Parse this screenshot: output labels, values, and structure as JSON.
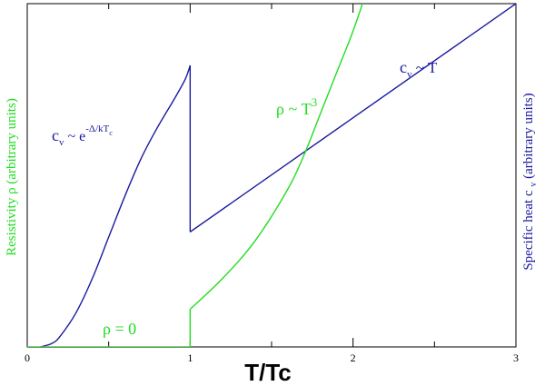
{
  "chart_data": {
    "type": "line",
    "xlabel": "T/Tc",
    "ylabel_left": "Resistivity ρ (arbitrary units)",
    "ylabel_right": "Specific heat c_v (arbitrary units)",
    "xlim": [
      0,
      3
    ],
    "ylim": [
      0,
      1
    ],
    "x_ticks": [
      0,
      1,
      2,
      3
    ],
    "x_tick_labels": [
      "0",
      "1",
      "2",
      "3"
    ],
    "grid": false,
    "colors": {
      "resistivity": "#22dd22",
      "specific_heat": "#1a1aa0"
    },
    "series": [
      {
        "key": "specific_heat",
        "points": [
          [
            0.08,
            0
          ],
          [
            0.15,
            0.01
          ],
          [
            0.2,
            0.03
          ],
          [
            0.3,
            0.1
          ],
          [
            0.4,
            0.2
          ],
          [
            0.5,
            0.32
          ],
          [
            0.6,
            0.44
          ],
          [
            0.7,
            0.55
          ],
          [
            0.8,
            0.64
          ],
          [
            0.9,
            0.72
          ],
          [
            0.97,
            0.78
          ],
          [
            1.0,
            0.82
          ],
          [
            1.0,
            0.335
          ],
          [
            3.0,
            1.0
          ]
        ]
      },
      {
        "key": "resistivity",
        "points": [
          [
            0.0,
            0
          ],
          [
            1.0,
            0
          ],
          [
            1.0,
            0.11
          ],
          [
            1.2,
            0.2
          ],
          [
            1.4,
            0.31
          ],
          [
            1.6,
            0.46
          ],
          [
            1.7,
            0.56
          ],
          [
            1.8,
            0.68
          ],
          [
            1.9,
            0.8
          ],
          [
            2.0,
            0.92
          ],
          [
            2.1,
            1.06
          ]
        ]
      }
    ],
    "annotations": {
      "cv_exp": {
        "base": "c",
        "sub": "v",
        "mid": " ~ e",
        "sup": "-Δ/kT",
        "supsub": "c"
      },
      "cv_lin": {
        "base": "c",
        "sub": "v",
        "rest": " ~ T"
      },
      "rho_cubic": {
        "base": "ρ ~ T",
        "sup": "3"
      },
      "rho_zero": "ρ = 0"
    }
  }
}
